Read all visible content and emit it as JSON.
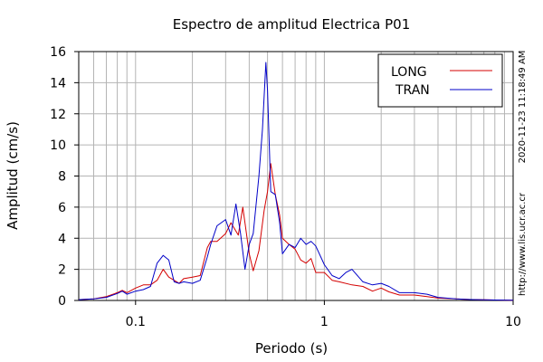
{
  "chart_data": {
    "type": "line",
    "title": "Espectro de amplitud Electrica P01",
    "xlabel": "Periodo (s)",
    "ylabel": "Amplitud (cm/s)",
    "x_scale": "log",
    "xlim": [
      0.05,
      10
    ],
    "ylim": [
      0,
      16
    ],
    "x_ticks": [
      0.1,
      1,
      10
    ],
    "x_tick_labels": [
      "0.1",
      "1",
      "10"
    ],
    "y_ticks": [
      0,
      2,
      4,
      6,
      8,
      10,
      12,
      14,
      16
    ],
    "y_tick_labels": [
      "0",
      "2",
      "4",
      "6",
      "8",
      "10",
      "12",
      "14",
      "16"
    ],
    "grid": true,
    "legend_position": "top-right",
    "timestamp": "2020-11-23 11:18:49 AM",
    "source_url": "http://www.lis.ucr.ac.cr",
    "colors": {
      "LONG": "#d40000",
      "TRAN": "#0000c8"
    },
    "series": [
      {
        "name": "LONG",
        "color": "#d40000",
        "x": [
          0.05,
          0.06,
          0.07,
          0.08,
          0.085,
          0.09,
          0.1,
          0.11,
          0.12,
          0.13,
          0.14,
          0.15,
          0.16,
          0.17,
          0.18,
          0.2,
          0.22,
          0.24,
          0.25,
          0.27,
          0.3,
          0.32,
          0.35,
          0.37,
          0.4,
          0.42,
          0.45,
          0.48,
          0.5,
          0.52,
          0.55,
          0.58,
          0.6,
          0.65,
          0.7,
          0.75,
          0.8,
          0.85,
          0.9,
          1.0,
          1.1,
          1.2,
          1.4,
          1.6,
          1.8,
          2.0,
          2.2,
          2.5,
          3.0,
          3.5,
          4.0,
          5.0,
          6.0,
          7.0,
          8.0,
          10.0
        ],
        "values": [
          0.05,
          0.1,
          0.25,
          0.5,
          0.65,
          0.5,
          0.8,
          1.0,
          1.0,
          1.3,
          2.0,
          1.5,
          1.3,
          1.1,
          1.4,
          1.5,
          1.6,
          3.4,
          3.8,
          3.8,
          4.3,
          5.0,
          4.2,
          6.0,
          3.0,
          1.9,
          3.2,
          5.8,
          7.0,
          8.8,
          6.8,
          5.5,
          4.0,
          3.6,
          3.3,
          2.6,
          2.4,
          2.7,
          1.8,
          1.8,
          1.3,
          1.2,
          1.0,
          0.9,
          0.6,
          0.8,
          0.55,
          0.35,
          0.35,
          0.25,
          0.15,
          0.1,
          0.06,
          0.04,
          0.03,
          0.02
        ]
      },
      {
        "name": "TRAN",
        "color": "#0000c8",
        "x": [
          0.05,
          0.06,
          0.07,
          0.08,
          0.085,
          0.09,
          0.1,
          0.11,
          0.12,
          0.13,
          0.14,
          0.15,
          0.16,
          0.17,
          0.18,
          0.2,
          0.22,
          0.24,
          0.25,
          0.27,
          0.3,
          0.32,
          0.34,
          0.36,
          0.38,
          0.4,
          0.42,
          0.45,
          0.47,
          0.49,
          0.5,
          0.52,
          0.55,
          0.58,
          0.6,
          0.65,
          0.7,
          0.75,
          0.8,
          0.85,
          0.9,
          1.0,
          1.1,
          1.2,
          1.3,
          1.4,
          1.6,
          1.8,
          2.0,
          2.2,
          2.5,
          3.0,
          3.5,
          4.0,
          5.0,
          6.0,
          7.0,
          8.0,
          10.0
        ],
        "values": [
          0.05,
          0.1,
          0.2,
          0.45,
          0.6,
          0.4,
          0.6,
          0.7,
          0.9,
          2.4,
          2.9,
          2.6,
          1.2,
          1.1,
          1.2,
          1.1,
          1.3,
          2.8,
          3.6,
          4.8,
          5.2,
          4.2,
          6.2,
          4.3,
          2.0,
          3.6,
          4.3,
          8.0,
          11.0,
          15.3,
          13.5,
          7.0,
          6.8,
          5.0,
          3.0,
          3.6,
          3.4,
          4.0,
          3.6,
          3.8,
          3.5,
          2.3,
          1.6,
          1.4,
          1.8,
          2.0,
          1.2,
          1.0,
          1.1,
          0.9,
          0.5,
          0.5,
          0.4,
          0.2,
          0.1,
          0.06,
          0.04,
          0.03,
          0.02
        ]
      }
    ]
  }
}
